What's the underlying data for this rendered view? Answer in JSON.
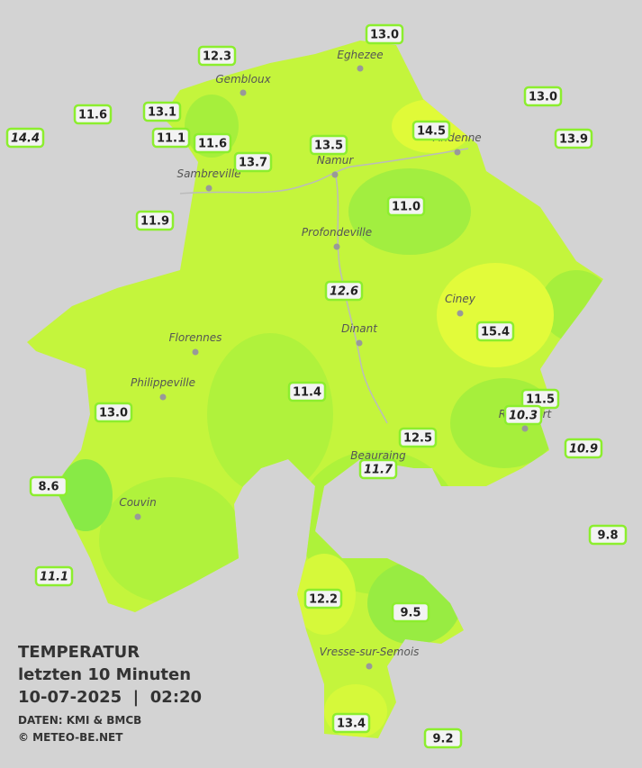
{
  "header": {
    "title": "TEMPERATUR",
    "subtitle": "letzten 10 Minuten",
    "datetime": "10-07-2025  |  02:20",
    "source": "DATEN: KMI & BMCB",
    "copyright": "© METEO-BE.NET"
  },
  "cities": [
    "Eghezee",
    "Gembloux",
    "Andenne",
    "Namur",
    "Sambreville",
    "Profondeville",
    "Ciney",
    "Dinant",
    "Florennes",
    "Philippeville",
    "Rochefort",
    "Beauraing",
    "Couvin",
    "Vresse-sur-Semois"
  ],
  "stations": [
    "13.0",
    "12.3",
    "13.0",
    "11.6",
    "13.1",
    "14.4",
    "11.1",
    "11.6",
    "13.5",
    "14.5",
    "13.9",
    "13.7",
    "11.0",
    "11.9",
    "12.6",
    "15.4",
    "11.4",
    "11.5",
    "13.0",
    "10.3",
    "12.5",
    "10.9",
    "11.7",
    "8.6",
    "9.8",
    "11.1",
    "12.2",
    "9.5",
    "13.4",
    "9.2"
  ]
}
